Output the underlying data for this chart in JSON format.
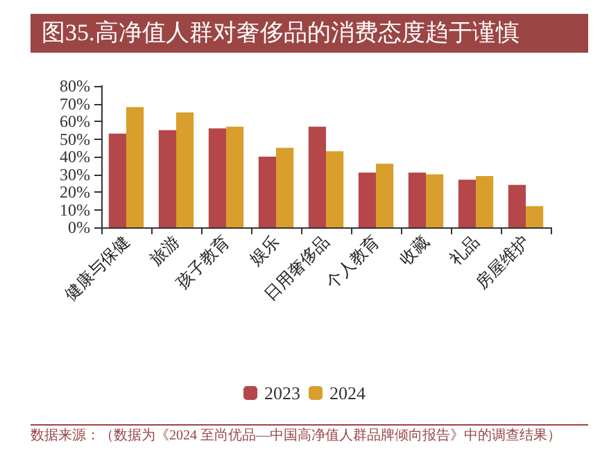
{
  "chart_data": {
    "type": "bar",
    "title": "图35.高净值人群对奢侈品的消费态度趋于谨慎",
    "categories": [
      "健康与保健",
      "旅游",
      "孩子教育",
      "娱乐",
      "日用奢侈品",
      "个人教育",
      "收藏",
      "礼品",
      "房屋维护"
    ],
    "series": [
      {
        "name": "2023",
        "color": "#b5474a",
        "values": [
          53,
          55,
          56,
          40,
          57,
          31,
          31,
          27,
          24
        ]
      },
      {
        "name": "2024",
        "color": "#d99e2b",
        "values": [
          68,
          65,
          57,
          45,
          43,
          36,
          30,
          29,
          12
        ]
      }
    ],
    "ylim": [
      0,
      80
    ],
    "yticks": [
      {
        "value": 0,
        "label": "0%"
      },
      {
        "value": 10,
        "label": "10%"
      },
      {
        "value": 20,
        "label": "20%"
      },
      {
        "value": 30,
        "label": "30%"
      },
      {
        "value": 40,
        "label": "40%"
      },
      {
        "value": 50,
        "label": "50%"
      },
      {
        "value": 60,
        "label": "60%"
      },
      {
        "value": 70,
        "label": "70%"
      },
      {
        "value": 80,
        "label": "80%"
      }
    ],
    "grid": false,
    "legend": "bottom",
    "annotations": [
      "数据来源：（数据为《2024 至尚优品—中国高净值人群品牌倾向报告》中的调查结果）"
    ]
  }
}
